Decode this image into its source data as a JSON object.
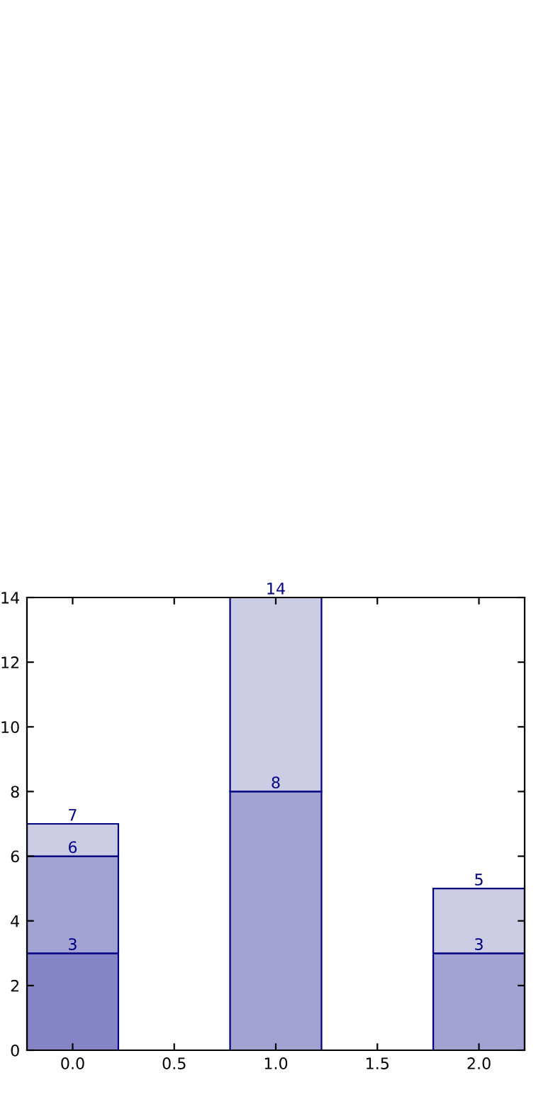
{
  "chart_data": {
    "type": "bar",
    "x": [
      0,
      1,
      2
    ],
    "stacked": true,
    "series": [
      {
        "colors": [
          "#8585c6",
          "#a3a3d3",
          "#a3a3d3"
        ],
        "values": [
          3,
          8,
          3
        ]
      },
      {
        "colors": [
          "#a3a3d3",
          "#ccccE5",
          "#ccccE5"
        ],
        "values": [
          3,
          6,
          2
        ]
      },
      {
        "colors": [
          "#ccccE5",
          null,
          null
        ],
        "values": [
          1,
          null,
          null
        ]
      }
    ],
    "annotations": [
      {
        "text": "3",
        "x": 0,
        "y": 3
      },
      {
        "text": "6",
        "x": 0,
        "y": 6
      },
      {
        "text": "7",
        "x": 0,
        "y": 7
      },
      {
        "text": "8",
        "x": 1,
        "y": 8
      },
      {
        "text": "14",
        "x": 1,
        "y": 14
      },
      {
        "text": "3",
        "x": 2,
        "y": 3
      },
      {
        "text": "5",
        "x": 2,
        "y": 5
      }
    ],
    "xlim": [
      -0.225,
      2.225
    ],
    "xticks": [
      {
        "value": 0,
        "label": "0.0"
      },
      {
        "value": 0.5,
        "label": "0.5"
      },
      {
        "value": 1,
        "label": "1.0"
      },
      {
        "value": 1.5,
        "label": "1.5"
      },
      {
        "value": 2,
        "label": "2.0"
      }
    ],
    "ylim": [
      0,
      14
    ],
    "yticks": [
      0,
      2,
      4,
      6,
      8,
      10,
      12,
      14
    ],
    "grid": false
  }
}
